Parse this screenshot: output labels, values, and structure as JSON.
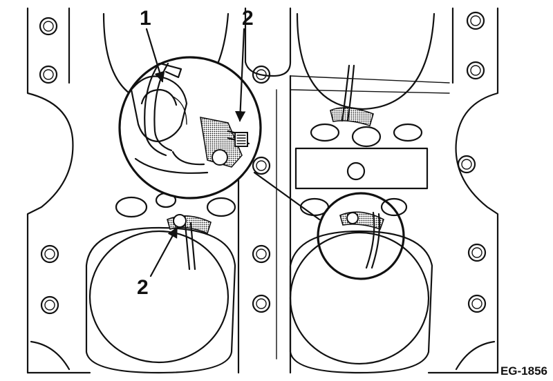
{
  "callouts": {
    "one": "1",
    "two_upper": "2",
    "two_lower": "2"
  },
  "figure_ref": "EG-1856",
  "colors": {
    "ink": "#111111",
    "paper": "#ffffff"
  }
}
